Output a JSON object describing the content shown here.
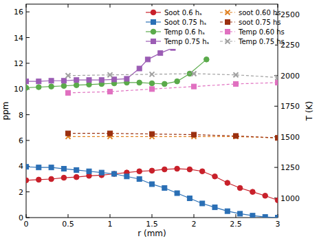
{
  "chart_data": {
    "type": "line",
    "x_label": "r (mm)",
    "y_label": "ppm",
    "y2_label": "T (K)",
    "xlim": [
      0,
      3
    ],
    "xticks": [
      0,
      0.5,
      1,
      1.5,
      2,
      2.5,
      3
    ],
    "ylim": [
      0,
      16.6
    ],
    "yticks": [
      0,
      2,
      4,
      6,
      8,
      10,
      12,
      14,
      16
    ],
    "y2lim": [
      840,
      2584
    ],
    "y2ticks": [
      1000,
      1250,
      1500,
      1750,
      2000,
      2250,
      2500
    ],
    "legend": "upper right",
    "grid": false,
    "series": [
      {
        "name": "Soot 0.6 hₛ",
        "color": "#c8202a",
        "marker": "circle",
        "line_style": "solid",
        "x": [
          0,
          0.15,
          0.3,
          0.45,
          0.6,
          0.75,
          0.9,
          1.05,
          1.2,
          1.35,
          1.5,
          1.65,
          1.8,
          1.95,
          2.1,
          2.25,
          2.4,
          2.55,
          2.7,
          2.85,
          3.0
        ],
        "values": [
          2.9,
          2.95,
          3.0,
          3.1,
          3.15,
          3.25,
          3.3,
          3.4,
          3.5,
          3.6,
          3.65,
          3.75,
          3.8,
          3.75,
          3.6,
          3.2,
          2.7,
          2.3,
          2.0,
          1.7,
          1.35
        ]
      },
      {
        "name": "Soot 0.75 hₛ",
        "color": "#2a6fb5",
        "marker": "square",
        "line_style": "solid",
        "x": [
          0,
          0.15,
          0.3,
          0.45,
          0.6,
          0.75,
          0.9,
          1.05,
          1.2,
          1.35,
          1.5,
          1.65,
          1.8,
          1.95,
          2.1,
          2.25,
          2.4,
          2.55,
          2.7,
          2.85,
          3.0
        ],
        "values": [
          3.95,
          3.9,
          3.9,
          3.8,
          3.7,
          3.6,
          3.5,
          3.4,
          3.2,
          3.0,
          2.6,
          2.3,
          1.9,
          1.5,
          1.1,
          0.8,
          0.5,
          0.3,
          0.15,
          0.05,
          0.0
        ]
      },
      {
        "name": "Temp 0.6 hₛ",
        "color": "#5aaa4a",
        "marker": "circle",
        "line_style": "solid",
        "axis": "y2",
        "x": [
          0,
          0.15,
          0.3,
          0.45,
          0.6,
          0.75,
          0.9,
          1.05,
          1.2,
          1.35,
          1.5,
          1.65,
          1.8,
          1.95,
          2.15
        ],
        "values": [
          1901,
          1906,
          1911,
          1916,
          1922,
          1927,
          1932,
          1937,
          1943,
          1943,
          1937,
          1932,
          1953,
          2016,
          2132
        ]
      },
      {
        "name": "Temp 0.75 hₛ",
        "color": "#9b5cb4",
        "marker": "square",
        "line_style": "solid",
        "axis": "y2",
        "x": [
          0,
          0.15,
          0.3,
          0.45,
          0.6,
          0.75,
          0.9,
          1.05,
          1.2,
          1.35,
          1.45,
          1.6,
          1.75
        ],
        "values": [
          1953,
          1953,
          1958,
          1958,
          1964,
          1964,
          1964,
          1969,
          1974,
          2058,
          2132,
          2184,
          2226
        ]
      },
      {
        "name": "soot 0.60 hs",
        "color": "#e08020",
        "marker": "x",
        "line_style": "dashed",
        "x": [
          0.5,
          1,
          1.5,
          2,
          2.5,
          3
        ],
        "values": [
          6.3,
          6.3,
          6.3,
          6.3,
          6.3,
          6.2
        ]
      },
      {
        "name": "soot  0.75 hs",
        "color": "#9b3010",
        "marker": "square",
        "line_style": "dashed",
        "x": [
          0.5,
          1,
          1.5,
          2,
          2.5,
          3
        ],
        "values": [
          6.55,
          6.55,
          6.5,
          6.45,
          6.35,
          6.2
        ]
      },
      {
        "name": "Temp  0.60 hs",
        "color": "#e070c0",
        "marker": "square",
        "line_style": "dashed",
        "axis": "y2",
        "x": [
          0.5,
          1,
          1.5,
          2,
          2.5,
          3
        ],
        "values": [
          1859,
          1869,
          1890,
          1911,
          1932,
          1943
        ]
      },
      {
        "name": "Temp  0.75 hs",
        "color": "#a0a0a0",
        "marker": "x",
        "line_style": "dashed",
        "axis": "y2",
        "x": [
          0.5,
          1,
          1.5,
          2,
          2.5,
          3
        ],
        "values": [
          2000,
          2006,
          2011,
          2016,
          2006,
          1985
        ]
      }
    ]
  }
}
